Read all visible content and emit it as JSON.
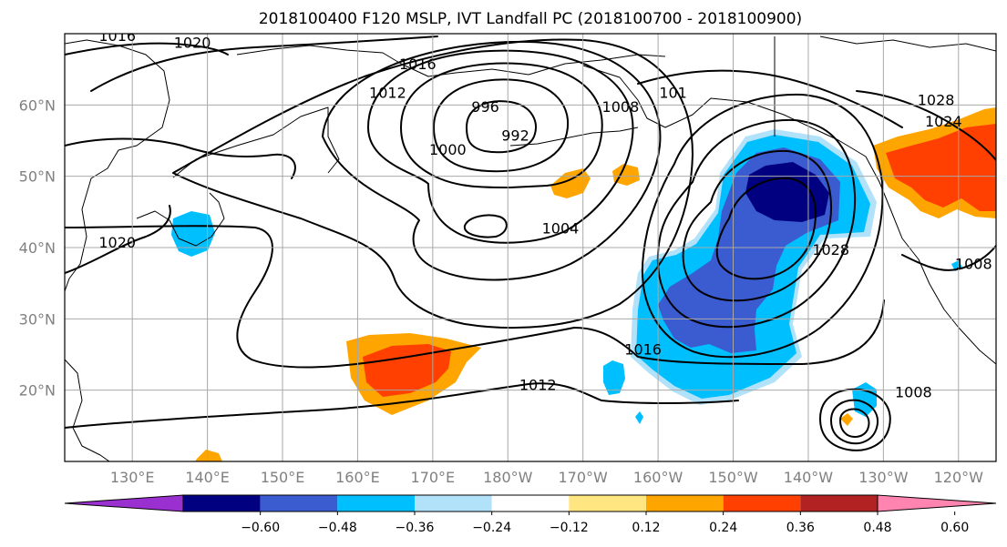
{
  "title": "2018100400 F120 MSLP, IVT Landfall PC (2018100700 - 2018100900)",
  "map": {
    "lon_range": [
      121,
      245
    ],
    "lat_range": [
      10,
      70
    ],
    "lon_ticks": [
      {
        "lon": 130,
        "label": "130°E"
      },
      {
        "lon": 140,
        "label": "140°E"
      },
      {
        "lon": 150,
        "label": "150°E"
      },
      {
        "lon": 160,
        "label": "160°E"
      },
      {
        "lon": 170,
        "label": "170°E"
      },
      {
        "lon": 180,
        "label": "180°W"
      },
      {
        "lon": 190,
        "label": "170°W"
      },
      {
        "lon": 200,
        "label": "160°W"
      },
      {
        "lon": 210,
        "label": "150°W"
      },
      {
        "lon": 220,
        "label": "140°W"
      },
      {
        "lon": 230,
        "label": "130°W"
      },
      {
        "lon": 240,
        "label": "120°W"
      }
    ],
    "lat_ticks": [
      {
        "lat": 20,
        "label": "20°N"
      },
      {
        "lat": 30,
        "label": "30°N"
      },
      {
        "lat": 40,
        "label": "40°N"
      },
      {
        "lat": 50,
        "label": "50°N"
      },
      {
        "lat": 60,
        "label": "60°N"
      }
    ],
    "contour_labels": [
      {
        "text": "1016",
        "lon": 128,
        "lat": 69
      },
      {
        "text": "1020",
        "lon": 138,
        "lat": 68
      },
      {
        "text": "1016",
        "lon": 168,
        "lat": 65
      },
      {
        "text": "1012",
        "lon": 164,
        "lat": 61
      },
      {
        "text": "996",
        "lon": 177,
        "lat": 59
      },
      {
        "text": "992",
        "lon": 181,
        "lat": 55
      },
      {
        "text": "1000",
        "lon": 172,
        "lat": 53
      },
      {
        "text": "1008",
        "lon": 195,
        "lat": 59
      },
      {
        "text": "101",
        "lon": 202,
        "lat": 61
      },
      {
        "text": "1004",
        "lon": 187,
        "lat": 42
      },
      {
        "text": "1020",
        "lon": 128,
        "lat": 40
      },
      {
        "text": "1028",
        "lon": 223,
        "lat": 39
      },
      {
        "text": "1028",
        "lon": 237,
        "lat": 60
      },
      {
        "text": "1024",
        "lon": 238,
        "lat": 57
      },
      {
        "text": "1008",
        "lon": 242,
        "lat": 37
      },
      {
        "text": "1016",
        "lon": 198,
        "lat": 25
      },
      {
        "text": "1012",
        "lon": 184,
        "lat": 20
      },
      {
        "text": "1008",
        "lon": 234,
        "lat": 19
      }
    ]
  },
  "colorbar": {
    "ticks": [
      "−0.60",
      "−0.48",
      "−0.36",
      "−0.24",
      "−0.12",
      "0.12",
      "0.24",
      "0.36",
      "0.48",
      "0.60"
    ],
    "colors": [
      "#9b30d0",
      "#000080",
      "#3b5bd0",
      "#00bfff",
      "#b2e2fa",
      "#ffffff",
      "#ffe680",
      "#ffa500",
      "#ff4000",
      "#b22222",
      "#ff85b0"
    ]
  }
}
